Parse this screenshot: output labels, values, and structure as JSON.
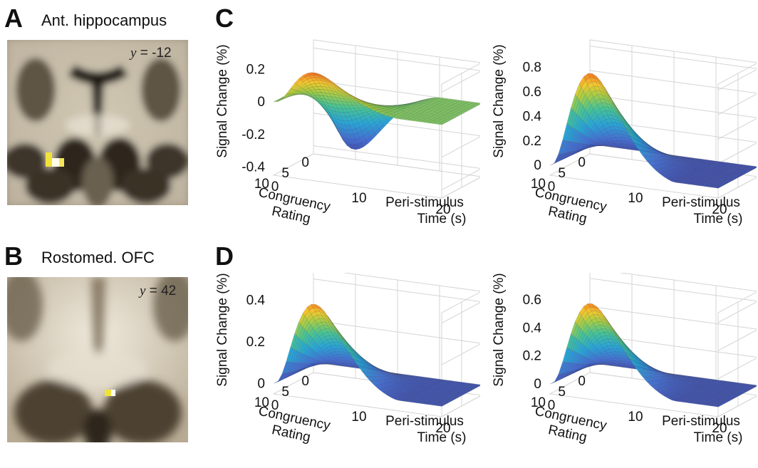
{
  "panels": {
    "A": {
      "letter": "A",
      "title": "Ant. hippocampus",
      "coord_axis": "y",
      "coord_value": "= -12"
    },
    "B": {
      "letter": "B",
      "title": "Rostomed. OFC",
      "coord_axis": "y",
      "coord_value": "= 42"
    },
    "C": {
      "letter": "C"
    },
    "D": {
      "letter": "D"
    }
  },
  "chart_data": [
    {
      "panel": "C-left",
      "type": "surface",
      "xlabel": "Peri-stimulus Time (s)",
      "ylabel": "Congruency Rating",
      "zlabel": "Signal Change (%)",
      "x_ticks": [
        0,
        10,
        20
      ],
      "y_ticks": [
        0,
        5,
        10
      ],
      "z_ticks": [
        -0.4,
        -0.2,
        0,
        0.2
      ],
      "zlim": [
        -0.45,
        0.25
      ],
      "surface": "bipolar",
      "peak": {
        "congruency": 10,
        "time_s": 5,
        "value": 0.22
      },
      "trough": {
        "congruency": 0,
        "time_s": 5,
        "value": -0.4
      }
    },
    {
      "panel": "C-right",
      "type": "surface",
      "xlabel": "Peri-stimulus Time (s)",
      "ylabel": "Congruency Rating",
      "zlabel": "Signal Change (%)",
      "x_ticks": [
        0,
        10,
        20
      ],
      "y_ticks": [
        0,
        5,
        10
      ],
      "z_ticks": [
        0,
        0.2,
        0.4,
        0.6,
        0.8
      ],
      "zlim": [
        -0.08,
        0.85
      ],
      "surface": "rising",
      "peak": {
        "congruency": 10,
        "time_s": 5,
        "value": 0.82
      }
    },
    {
      "panel": "D-left",
      "type": "surface",
      "xlabel": "Peri-stimulus Time (s)",
      "ylabel": "Congruency Rating",
      "zlabel": "Signal Change (%)",
      "x_ticks": [
        0,
        10,
        20
      ],
      "y_ticks": [
        0,
        5,
        10
      ],
      "z_ticks": [
        0,
        0.2,
        0.4
      ],
      "zlim": [
        -0.05,
        0.45
      ],
      "surface": "rising",
      "peak": {
        "congruency": 10,
        "time_s": 5,
        "value": 0.42
      }
    },
    {
      "panel": "D-right",
      "type": "surface",
      "xlabel": "Peri-stimulus Time (s)",
      "ylabel": "Congruency Rating",
      "zlabel": "Signal Change (%)",
      "x_ticks": [
        0,
        10,
        20
      ],
      "y_ticks": [
        0,
        5,
        10
      ],
      "z_ticks": [
        0,
        0.2,
        0.4,
        0.6
      ],
      "zlim": [
        -0.07,
        0.67
      ],
      "surface": "rising",
      "peak": {
        "congruency": 10,
        "time_s": 5,
        "value": 0.63
      }
    }
  ]
}
